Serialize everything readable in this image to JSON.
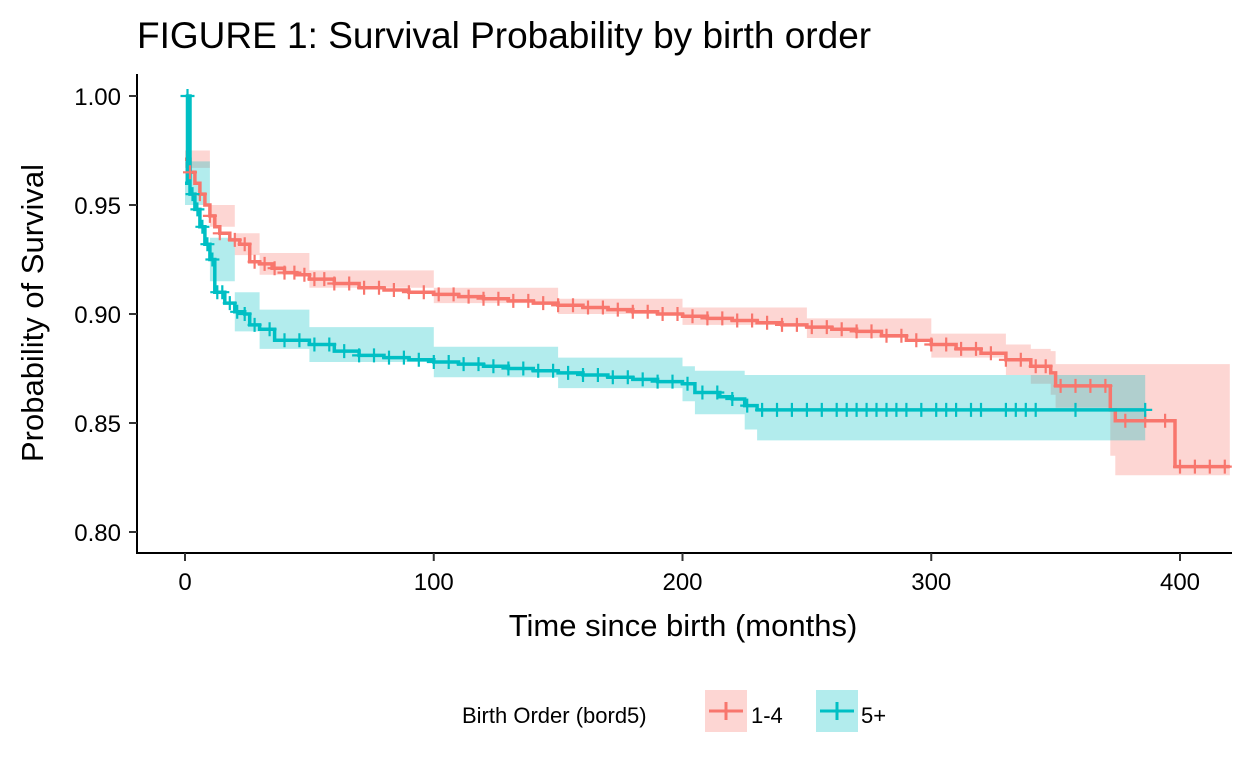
{
  "chart_data": {
    "type": "line",
    "title": "FIGURE 1: Survival Probability by birth order",
    "xlabel": "Time since birth (months)",
    "ylabel": "Probability of Survival",
    "xlim": [
      -20,
      420
    ],
    "ylim": [
      0.79,
      1.0
    ],
    "x_ticks": [
      0,
      100,
      200,
      300,
      400
    ],
    "x_tick_labels": [
      "0",
      "100",
      "200",
      "300",
      "400"
    ],
    "y_ticks": [
      0.8,
      0.85,
      0.9,
      0.95,
      1.0
    ],
    "y_tick_labels": [
      "0.80",
      "0.85",
      "0.90",
      "0.95",
      "1.00"
    ],
    "grid": false,
    "legend_title": "Birth Order (bord5)",
    "legend_position": "bottom",
    "series": [
      {
        "name": "1-4",
        "color": "#F8766D",
        "band_color": "#F8766D",
        "points": [
          [
            0,
            0.971
          ],
          [
            2,
            0.965
          ],
          [
            4,
            0.96
          ],
          [
            6,
            0.955
          ],
          [
            8,
            0.95
          ],
          [
            10,
            0.945
          ],
          [
            12,
            0.94
          ],
          [
            14,
            0.937
          ],
          [
            18,
            0.934
          ],
          [
            22,
            0.932
          ],
          [
            26,
            0.924
          ],
          [
            30,
            0.923
          ],
          [
            35,
            0.921
          ],
          [
            40,
            0.919
          ],
          [
            45,
            0.918
          ],
          [
            50,
            0.916
          ],
          [
            60,
            0.914
          ],
          [
            70,
            0.912
          ],
          [
            80,
            0.911
          ],
          [
            90,
            0.91
          ],
          [
            100,
            0.909
          ],
          [
            110,
            0.908
          ],
          [
            120,
            0.907
          ],
          [
            130,
            0.906
          ],
          [
            140,
            0.905
          ],
          [
            150,
            0.904
          ],
          [
            160,
            0.903
          ],
          [
            170,
            0.902
          ],
          [
            180,
            0.901
          ],
          [
            190,
            0.9
          ],
          [
            200,
            0.899
          ],
          [
            210,
            0.898
          ],
          [
            220,
            0.897
          ],
          [
            230,
            0.896
          ],
          [
            240,
            0.895
          ],
          [
            250,
            0.894
          ],
          [
            260,
            0.893
          ],
          [
            270,
            0.892
          ],
          [
            280,
            0.89
          ],
          [
            290,
            0.888
          ],
          [
            300,
            0.886
          ],
          [
            310,
            0.884
          ],
          [
            320,
            0.882
          ],
          [
            330,
            0.879
          ],
          [
            340,
            0.876
          ],
          [
            348,
            0.873
          ],
          [
            350,
            0.867
          ],
          [
            365,
            0.867
          ],
          [
            372,
            0.856
          ],
          [
            374,
            0.851
          ],
          [
            396,
            0.851
          ],
          [
            398,
            0.83
          ],
          [
            420,
            0.83
          ]
        ],
        "ci_upper": [
          [
            0,
            0.975
          ],
          [
            10,
            0.95
          ],
          [
            20,
            0.937
          ],
          [
            30,
            0.928
          ],
          [
            50,
            0.92
          ],
          [
            100,
            0.912
          ],
          [
            150,
            0.907
          ],
          [
            200,
            0.903
          ],
          [
            250,
            0.898
          ],
          [
            300,
            0.891
          ],
          [
            330,
            0.886
          ],
          [
            340,
            0.884
          ],
          [
            348,
            0.883
          ],
          [
            350,
            0.877
          ],
          [
            372,
            0.877
          ],
          [
            374,
            0.877
          ],
          [
            396,
            0.877
          ],
          [
            398,
            0.877
          ],
          [
            420,
            0.877
          ]
        ],
        "ci_lower": [
          [
            0,
            0.967
          ],
          [
            10,
            0.94
          ],
          [
            20,
            0.927
          ],
          [
            30,
            0.918
          ],
          [
            50,
            0.912
          ],
          [
            100,
            0.905
          ],
          [
            150,
            0.9
          ],
          [
            200,
            0.895
          ],
          [
            250,
            0.889
          ],
          [
            300,
            0.88
          ],
          [
            330,
            0.872
          ],
          [
            340,
            0.868
          ],
          [
            348,
            0.863
          ],
          [
            350,
            0.857
          ],
          [
            372,
            0.835
          ],
          [
            374,
            0.826
          ],
          [
            396,
            0.826
          ],
          [
            398,
            0.826
          ],
          [
            420,
            0.826
          ]
        ],
        "censor_x": [
          2,
          6,
          10,
          14,
          20,
          24,
          28,
          32,
          36,
          40,
          44,
          48,
          52,
          56,
          60,
          66,
          72,
          78,
          84,
          90,
          96,
          102,
          108,
          114,
          120,
          126,
          132,
          138,
          144,
          150,
          156,
          162,
          168,
          174,
          180,
          186,
          192,
          198,
          204,
          210,
          216,
          222,
          228,
          234,
          240,
          246,
          252,
          258,
          264,
          270,
          276,
          282,
          288,
          294,
          300,
          306,
          312,
          318,
          324,
          330,
          336,
          342,
          346,
          352,
          358,
          364,
          370,
          378,
          386,
          394,
          400,
          406,
          412,
          418
        ]
      },
      {
        "name": "5+",
        "color": "#00BFC4",
        "band_color": "#00BFC4",
        "points": [
          [
            0,
            0.96
          ],
          [
            1,
            1.0
          ],
          [
            2,
            0.955
          ],
          [
            4,
            0.948
          ],
          [
            6,
            0.94
          ],
          [
            8,
            0.932
          ],
          [
            10,
            0.925
          ],
          [
            12,
            0.91
          ],
          [
            16,
            0.905
          ],
          [
            20,
            0.901
          ],
          [
            24,
            0.9
          ],
          [
            26,
            0.895
          ],
          [
            30,
            0.893
          ],
          [
            36,
            0.888
          ],
          [
            50,
            0.886
          ],
          [
            60,
            0.883
          ],
          [
            70,
            0.881
          ],
          [
            80,
            0.88
          ],
          [
            90,
            0.879
          ],
          [
            100,
            0.878
          ],
          [
            110,
            0.877
          ],
          [
            120,
            0.876
          ],
          [
            130,
            0.875
          ],
          [
            140,
            0.874
          ],
          [
            150,
            0.873
          ],
          [
            160,
            0.872
          ],
          [
            170,
            0.871
          ],
          [
            180,
            0.87
          ],
          [
            190,
            0.869
          ],
          [
            200,
            0.868
          ],
          [
            205,
            0.864
          ],
          [
            215,
            0.862
          ],
          [
            220,
            0.861
          ],
          [
            225,
            0.858
          ],
          [
            230,
            0.856
          ],
          [
            386,
            0.856
          ]
        ],
        "ci_upper": [
          [
            0,
            0.97
          ],
          [
            10,
            0.935
          ],
          [
            20,
            0.91
          ],
          [
            30,
            0.902
          ],
          [
            50,
            0.894
          ],
          [
            100,
            0.885
          ],
          [
            150,
            0.88
          ],
          [
            200,
            0.876
          ],
          [
            205,
            0.874
          ],
          [
            225,
            0.872
          ],
          [
            230,
            0.872
          ],
          [
            386,
            0.872
          ]
        ],
        "ci_lower": [
          [
            0,
            0.95
          ],
          [
            10,
            0.915
          ],
          [
            20,
            0.892
          ],
          [
            30,
            0.884
          ],
          [
            50,
            0.878
          ],
          [
            100,
            0.871
          ],
          [
            150,
            0.866
          ],
          [
            200,
            0.86
          ],
          [
            205,
            0.854
          ],
          [
            225,
            0.847
          ],
          [
            230,
            0.842
          ],
          [
            386,
            0.842
          ]
        ],
        "censor_x": [
          1,
          3,
          5,
          7,
          9,
          11,
          13,
          15,
          18,
          21,
          24,
          28,
          34,
          40,
          46,
          52,
          58,
          64,
          70,
          76,
          82,
          88,
          94,
          100,
          106,
          112,
          118,
          124,
          130,
          136,
          142,
          148,
          154,
          160,
          166,
          172,
          178,
          184,
          190,
          196,
          202,
          208,
          214,
          220,
          226,
          232,
          238,
          244,
          250,
          256,
          262,
          266,
          270,
          274,
          278,
          282,
          286,
          290,
          296,
          302,
          306,
          310,
          316,
          320,
          330,
          334,
          338,
          342,
          358,
          386
        ]
      }
    ]
  }
}
